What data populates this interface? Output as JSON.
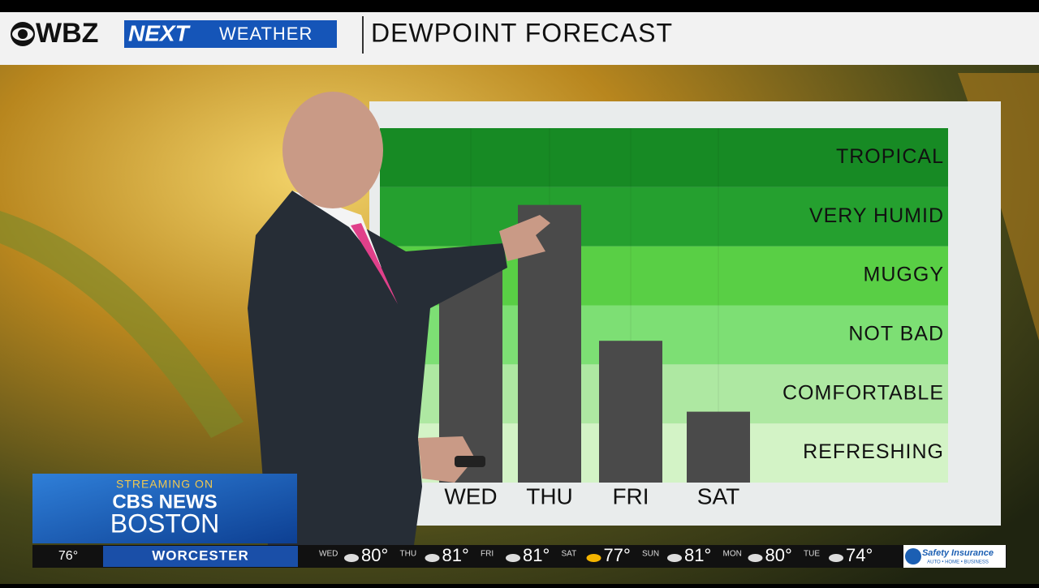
{
  "header": {
    "brand": "WBZ",
    "next": "NEXT",
    "weather": "WEATHER",
    "title": "DEWPOINT FORECAST"
  },
  "chart_data": {
    "type": "bar",
    "categories": [
      "WED",
      "THU",
      "FRI",
      "SAT"
    ],
    "values": [
      3.6,
      4.7,
      2.4,
      1.2
    ],
    "color": "#4a4a4a",
    "ylim": [
      0,
      6
    ],
    "bands": [
      {
        "label": "REFRESHING",
        "color": "#d3f3c6"
      },
      {
        "label": "COMFORTABLE",
        "color": "#aee8a2"
      },
      {
        "label": "NOT BAD",
        "color": "#7ddf74"
      },
      {
        "label": "MUGGY",
        "color": "#59cf45"
      },
      {
        "label": "VERY HUMID",
        "color": "#25a02f"
      },
      {
        "label": "TROPICAL",
        "color": "#178a24"
      }
    ]
  },
  "streaming": {
    "line1": "STREAMING ON",
    "line2": "CBS NEWS",
    "line3": "BOSTON"
  },
  "ticker": {
    "current_temp": "76°",
    "city": "WORCESTER",
    "days": [
      {
        "day": "WED",
        "temp": "80°"
      },
      {
        "day": "THU",
        "temp": "81°"
      },
      {
        "day": "FRI",
        "temp": "81°"
      },
      {
        "day": "SAT",
        "temp": "77°"
      },
      {
        "day": "SUN",
        "temp": "81°"
      },
      {
        "day": "MON",
        "temp": "80°"
      },
      {
        "day": "TUE",
        "temp": "74°"
      }
    ],
    "sponsor": "Safety Insurance",
    "sponsor_tag": "AUTO • HOME • BUSINESS"
  }
}
